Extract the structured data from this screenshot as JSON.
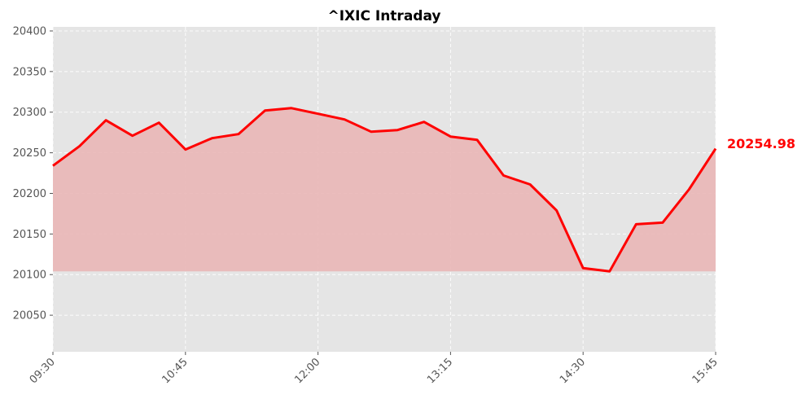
{
  "chart_data": {
    "type": "area",
    "title": "^IXIC Intraday",
    "xlabel": "",
    "ylabel": "",
    "x_tick_labels": [
      "09:30",
      "10:45",
      "12:00",
      "13:15",
      "14:30",
      "15:45"
    ],
    "y_ticks": [
      20050,
      20100,
      20150,
      20200,
      20250,
      20300,
      20350,
      20400
    ],
    "ylim": [
      20005,
      20405
    ],
    "fill_baseline": 20104,
    "grid": true,
    "series": [
      {
        "times": [
          "09:30",
          "09:45",
          "10:00",
          "10:15",
          "10:30",
          "10:45",
          "11:00",
          "11:15",
          "11:30",
          "11:45",
          "12:00",
          "12:15",
          "12:30",
          "12:45",
          "13:00",
          "13:15",
          "13:30",
          "13:45",
          "14:00",
          "14:15",
          "14:30",
          "14:45",
          "15:00",
          "15:15",
          "15:30",
          "15:45"
        ],
        "values": [
          20234,
          20258,
          20290,
          20271,
          20287,
          20254,
          20268,
          20273,
          20302,
          20305,
          20298,
          20291,
          20276,
          20278,
          20288,
          20270,
          20266,
          20222,
          20211,
          20179,
          20108,
          20104,
          20162,
          20164,
          20205,
          20255
        ]
      }
    ],
    "last_value_label": "20254.98",
    "colors": {
      "line": "#ff0000",
      "fill": "#e9b6b6",
      "background": "#e5e5e5",
      "last_label": "#ff0000"
    }
  }
}
